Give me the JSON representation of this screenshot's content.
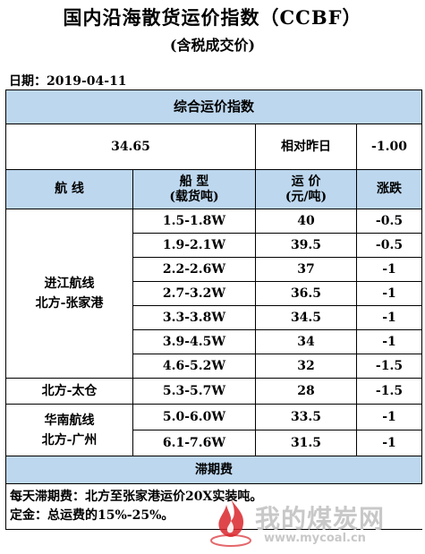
{
  "header": {
    "title": "国内沿海散货运价指数（CCBF）",
    "subtitle": "(含税成交价)",
    "date_label": "日期：",
    "date_value": "2019-04-11"
  },
  "table": {
    "section_title": "综合运价指数",
    "index_value": "34.65",
    "relative_label": "相对昨日",
    "relative_change": "-1.00",
    "columns": {
      "route": "航 线",
      "ship_type_line1": "船 型",
      "ship_type_line2": "(载货吨)",
      "freight_line1": "运 价",
      "freight_line2": "(元/吨)",
      "change": "涨跌"
    },
    "groups": [
      {
        "route_line1": "进江航线",
        "route_line2": "北方-张家港",
        "rows": [
          {
            "ship": "1.5-1.8W",
            "freight": "40",
            "change": "-0.5"
          },
          {
            "ship": "1.9-2.1W",
            "freight": "39.5",
            "change": "-0.5"
          },
          {
            "ship": "2.2-2.6W",
            "freight": "37",
            "change": "-1"
          },
          {
            "ship": "2.7-3.2W",
            "freight": "36.5",
            "change": "-1"
          },
          {
            "ship": "3.3-3.8W",
            "freight": "34.5",
            "change": "-1"
          },
          {
            "ship": "3.9-4.5W",
            "freight": "34",
            "change": "-1"
          },
          {
            "ship": "4.6-5.2W",
            "freight": "32",
            "change": "-1.5"
          }
        ]
      },
      {
        "route_line1": "北方-太仓",
        "route_line2": "",
        "rows": [
          {
            "ship": "5.3-5.7W",
            "freight": "28",
            "change": "-1.5"
          }
        ]
      },
      {
        "route_line1": "华南航线",
        "route_line2": "北方-广州",
        "rows": [
          {
            "ship": "5.0-6.0W",
            "freight": "33.5",
            "change": "-1"
          },
          {
            "ship": "6.1-7.6W",
            "freight": "31.5",
            "change": "-1"
          }
        ]
      }
    ],
    "demurrage_title": "滞期费",
    "note_line1": "每天滞期费：北方至张家港运价20X实装吨。",
    "note_line2": "定金：总运费的15%-25%。"
  },
  "watermark": {
    "name": "我的煤炭网",
    "url": "www.mycoal.cn"
  },
  "colors": {
    "header_fill": "#bdd7ee",
    "watermark": "#c8c8c8",
    "logo_red": "#d9262c"
  }
}
